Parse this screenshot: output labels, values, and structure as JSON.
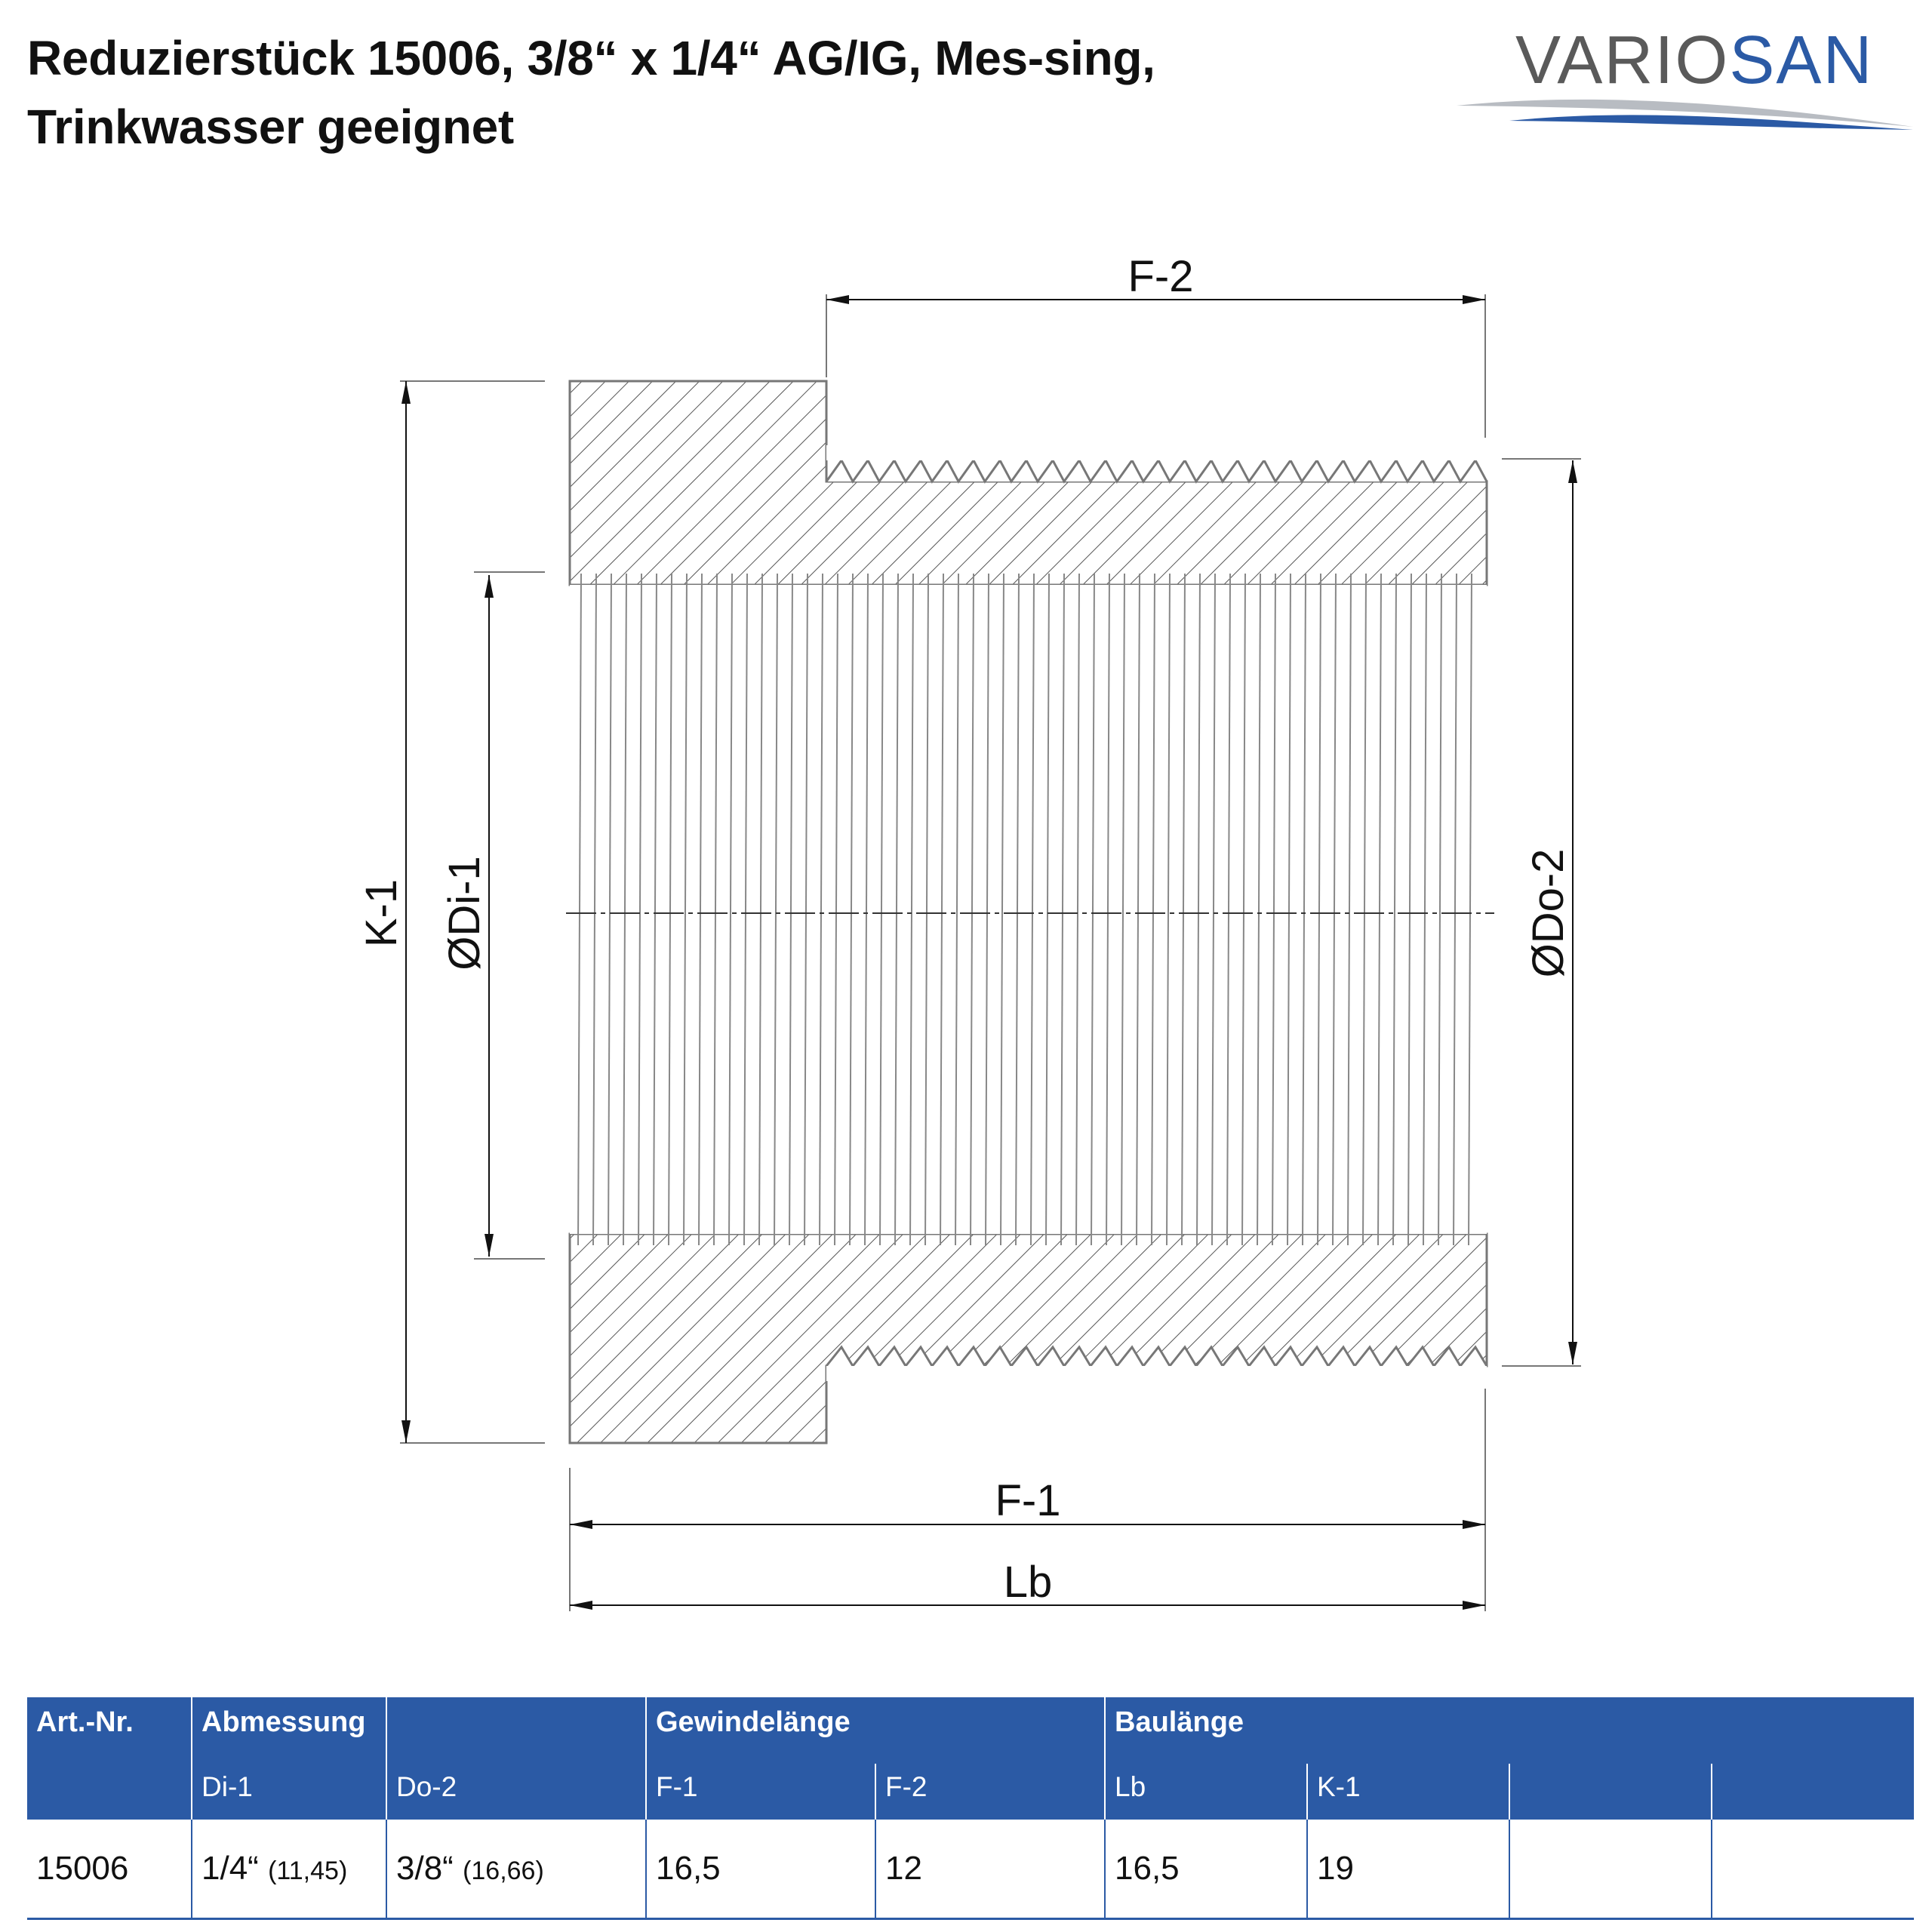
{
  "title": "Reduzierstück 15006, 3/8“ x 1/4“ AG/IG, Mes-sing, Trinkwasser geeignet",
  "logo": {
    "text_a": "VARIO",
    "text_b": "SAN",
    "color_a": "#5a5a5a",
    "color_b": "#2b5aa5"
  },
  "drawing": {
    "dimensions": {
      "f2": "F-2",
      "k1": "K-1",
      "di1": "ØDi-1",
      "do2": "ØDo-2",
      "f1": "F-1",
      "lb": "Lb"
    }
  },
  "table": {
    "header_color": "#2b5aa5",
    "group_headers": {
      "art_nr": "Art.-Nr.",
      "abmessung": "Abmessung",
      "gewindelaenge": "Gewindelänge",
      "baulaenge": "Baulänge"
    },
    "sub_headers": {
      "di1": "Di-1",
      "do2": "Do-2",
      "f1": "F-1",
      "f2": "F-2",
      "lb": "Lb",
      "k1": "K-1"
    },
    "row": {
      "art_nr": "15006",
      "di1": "1/4“",
      "di1_mm": "(11,45)",
      "do2": "3/8“",
      "do2_mm": "(16,66)",
      "f1": "16,5",
      "f2": "12",
      "lb": "16,5",
      "k1": "19"
    }
  }
}
